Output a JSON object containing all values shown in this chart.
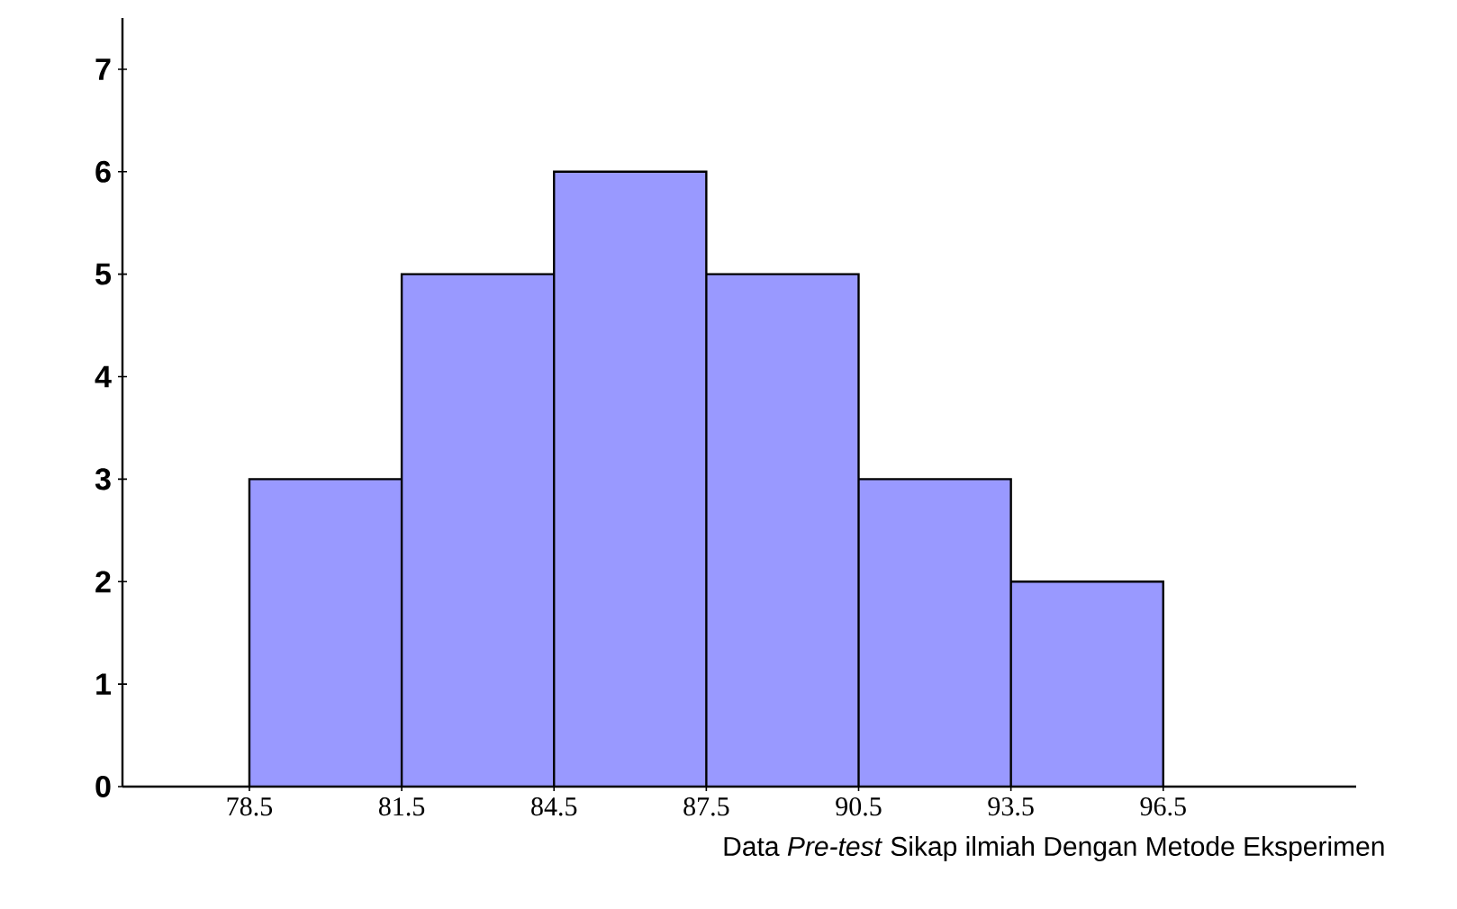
{
  "chart_data": {
    "type": "histogram",
    "xlabel": "Data *Pre-test* Sikap ilmiah Dengan Metode Eksperimen",
    "bins": [
      78.5,
      81.5,
      84.5,
      87.5,
      90.5,
      93.5,
      96.5
    ],
    "values": [
      3,
      5,
      6,
      5,
      3,
      2
    ],
    "color": "#9999ff",
    "xlim": [
      76,
      100.3
    ],
    "ylim": [
      0,
      7.5
    ],
    "xticks": [
      78.5,
      81.5,
      84.5,
      87.5,
      90.5,
      93.5,
      96.5
    ],
    "yticks": [
      0,
      1,
      2,
      3,
      4,
      5,
      6,
      7
    ],
    "grid": false
  }
}
